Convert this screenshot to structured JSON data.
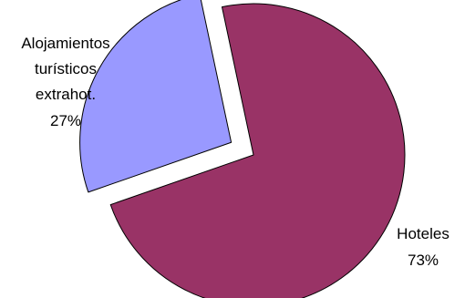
{
  "chart_data": {
    "type": "pie",
    "title": "",
    "slices": [
      {
        "label": "Hoteles",
        "value": 73,
        "value_label": "73%",
        "color": "#993366"
      },
      {
        "label_lines": [
          "Alojamientos",
          "turísticos",
          "extrahot."
        ],
        "value": 27,
        "value_label": "27%",
        "color": "#9999FF",
        "exploded": true
      }
    ]
  }
}
